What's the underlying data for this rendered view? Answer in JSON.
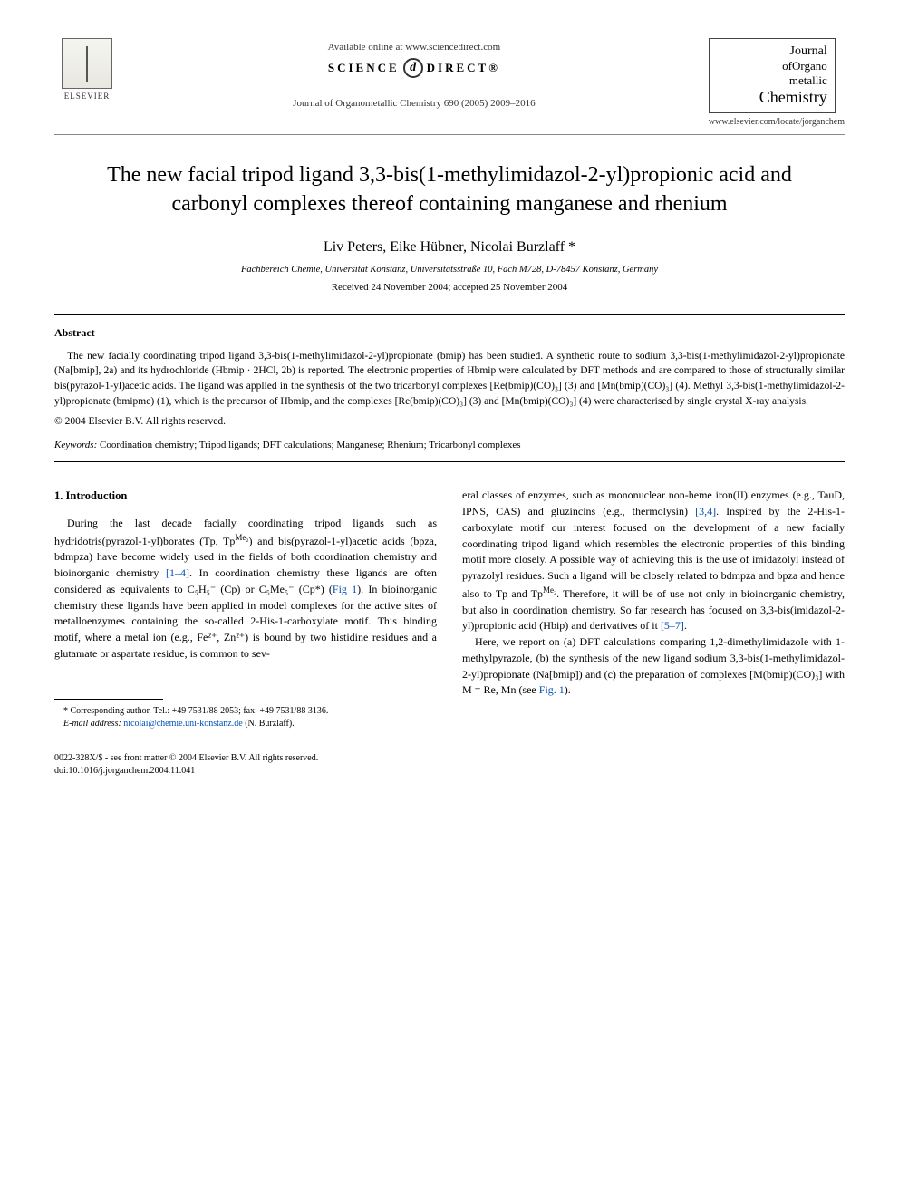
{
  "header": {
    "elsevier_label": "ELSEVIER",
    "available_online": "Available online at www.sciencedirect.com",
    "sciencedirect_left": "SCIENCE",
    "sciencedirect_glyph": "d",
    "sciencedirect_right": "DIRECT®",
    "journal_ref": "Journal of Organometallic Chemistry 690 (2005) 2009–2016",
    "journal_logo": {
      "l1": "Journal",
      "l2": "ofOrgano",
      "l3": "metallic",
      "l4": "Chemistry"
    },
    "journal_url": "www.elsevier.com/locate/jorganchem"
  },
  "title": "The new facial tripod ligand 3,3-bis(1-methylimidazol-2-yl)propionic acid and carbonyl complexes thereof containing manganese and rhenium",
  "authors": "Liv Peters, Eike Hübner, Nicolai Burzlaff *",
  "affiliation": "Fachbereich Chemie, Universität Konstanz, Universitätsstraße 10, Fach M728, D-78457 Konstanz, Germany",
  "dates": "Received 24 November 2004; accepted 25 November 2004",
  "abstract": {
    "heading": "Abstract",
    "body": "The new facially coordinating tripod ligand 3,3-bis(1-methylimidazol-2-yl)propionate (bmip) has been studied. A synthetic route to sodium 3,3-bis(1-methylimidazol-2-yl)propionate (Na[bmip], 2a) and its hydrochloride (Hbmip · 2HCl, 2b) is reported. The electronic properties of Hbmip were calculated by DFT methods and are compared to those of structurally similar bis(pyrazol-1-yl)acetic acids. The ligand was applied in the synthesis of the two tricarbonyl complexes [Re(bmip)(CO)₃] (3) and [Mn(bmip)(CO)₃] (4). Methyl 3,3-bis(1-methylimidazol-2-yl)propionate (bmipme) (1), which is the precursor of Hbmip, and the complexes [Re(bmip)(CO)₃] (3) and [Mn(bmip)(CO)₃] (4) were characterised by single crystal X-ray analysis.",
    "copyright": "© 2004 Elsevier B.V. All rights reserved."
  },
  "keywords": {
    "label": "Keywords:",
    "text": " Coordination chemistry; Tripod ligands; DFT calculations; Manganese; Rhenium; Tricarbonyl complexes"
  },
  "section1": {
    "heading": "1. Introduction",
    "col_left_p1a": "During the last decade facially coordinating tripod ligands such as hydridotris(pyrazol-1-yl)borates (Tp, Tp",
    "col_left_p1_sup": "Me₂",
    "col_left_p1b": ") and bis(pyrazol-1-yl)acetic acids (bpza, bdmpza) have become widely used in the fields of both coordination chemistry and bioinorganic chemistry ",
    "ref1": "[1–4]",
    "col_left_p1c": ". In coordination chemistry these ligands are often considered as equivalents to C₅H₅⁻ (Cp) or C₅Me₅⁻ (Cp*) (",
    "fig1": "Fig 1",
    "col_left_p1d": "). In bioinorganic chemistry these ligands have been applied in model complexes for the active sites of metalloenzymes containing the so-called 2-His-1-carboxylate motif. This binding motif, where a metal ion (e.g., Fe²⁺, Zn²⁺) is bound by two histidine residues and a glutamate or aspartate residue, is common to sev-",
    "col_right_p1a": "eral classes of enzymes, such as mononuclear non-heme iron(II) enzymes (e.g., TauD, IPNS, CAS) and gluzincins (e.g., thermolysin) ",
    "ref34": "[3,4]",
    "col_right_p1b": ". Inspired by the 2-His-1-carboxylate motif our interest focused on the development of a new facially coordinating tripod ligand which resembles the electronic properties of this binding motif more closely. A possible way of achieving this is the use of imidazolyl instead of pyrazolyl residues. Such a ligand will be closely related to bdmpza and bpza and hence also to Tp and Tp",
    "col_right_sup": "Me₂",
    "col_right_p1c": ". Therefore, it will be of use not only in bioinorganic chemistry, but also in coordination chemistry. So far research has focused on 3,3-bis(imidazol-2-yl)propionic acid (Hbip) and derivatives of it ",
    "ref57": "[5–7]",
    "col_right_p1d": ".",
    "col_right_p2a": "Here, we report on (a) DFT calculations comparing 1,2-dimethylimidazole with 1-methylpyrazole, (b) the synthesis of the new ligand sodium 3,3-bis(1-methylimidazol-2-yl)propionate (Na[bmip]) and (c) the preparation of complexes [M(bmip)(CO)₃] with M = Re, Mn (see ",
    "fig1b": "Fig. 1",
    "col_right_p2b": ")."
  },
  "footnote": {
    "corr": "* Corresponding author. Tel.: +49 7531/88 2053; fax: +49 7531/88 3136.",
    "email_label": "E-mail address:",
    "email": " nicolai@chemie.uni-konstanz.de",
    "email_tail": " (N. Burzlaff)."
  },
  "footer": {
    "line1": "0022-328X/$ - see front matter © 2004 Elsevier B.V. All rights reserved.",
    "line2": "doi:10.1016/j.jorganchem.2004.11.041"
  },
  "style": {
    "link_color": "#0050b3",
    "text_color": "#000000",
    "background": "#ffffff",
    "body_fontsize_pt": 12,
    "abstract_fontsize_pt": 11.5,
    "title_fontsize_pt": 24
  }
}
